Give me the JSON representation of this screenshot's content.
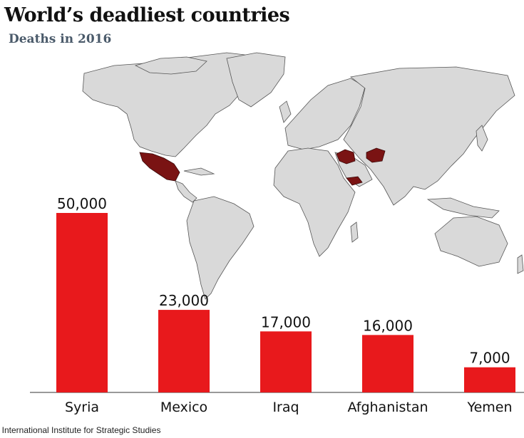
{
  "title": "World’s deadliest countries",
  "subtitle": "Deaths in 2016",
  "source": ": International Institute for Strategic Studies",
  "colors": {
    "bar": "#e8191c",
    "highlight_country": "#7a1313",
    "land": "#d9d9d9",
    "subtitle": "#4a5a6a"
  },
  "chart_data": {
    "type": "bar",
    "title": "World’s deadliest countries",
    "subtitle": "Deaths in 2016",
    "categories": [
      "Syria",
      "Mexico",
      "Iraq",
      "Afghanistan",
      "Yemen"
    ],
    "values": [
      50000,
      23000,
      17000,
      16000,
      7000
    ],
    "value_labels": [
      "50,000",
      "23,000",
      "17,000",
      "16,000",
      "7,000"
    ],
    "ylim": [
      0,
      50000
    ],
    "grid": false,
    "background": "world map with highlighted countries"
  }
}
